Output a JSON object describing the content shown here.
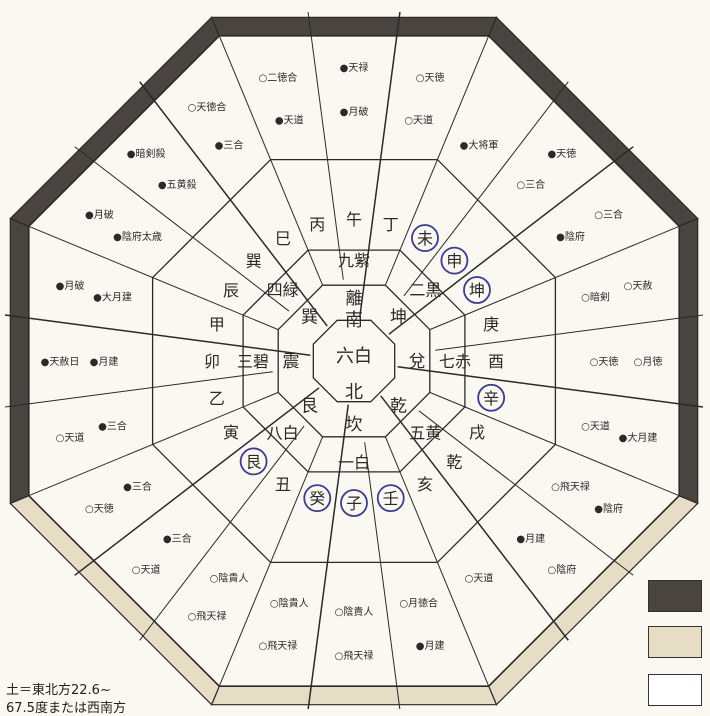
{
  "center": {
    "top": "北",
    "middle": "六白",
    "bottom": "南"
  },
  "colors": {
    "ink": "#2a2a2a",
    "dark_band": "#4a4440",
    "light_band": "#e7dcc4",
    "paper": "#fbf8f1",
    "circle": "#3b3b9a"
  },
  "sectors": [
    {
      "kyusei": "一白",
      "trigram": "坎",
      "branches": [
        "壬",
        "子",
        "癸"
      ]
    },
    {
      "kyusei": "二黒",
      "trigram": "坤",
      "branches": [
        "未",
        "申",
        "坤"
      ]
    },
    {
      "kyusei": "三碧",
      "trigram": "震",
      "branches": [
        "乙",
        "卯",
        "甲"
      ]
    },
    {
      "kyusei": "四緑",
      "trigram": "巽",
      "branches": [
        "辰",
        "巽",
        "巳"
      ]
    },
    {
      "kyusei": "九紫",
      "trigram": "離",
      "branches": [
        "丙",
        "午",
        "丁"
      ]
    },
    {
      "kyusei": "八白",
      "trigram": "艮",
      "branches": [
        "丑",
        "艮",
        "寅"
      ]
    },
    {
      "kyusei": "七赤",
      "trigram": "兌",
      "branches": [
        "庚",
        "酉",
        "辛"
      ]
    },
    {
      "kyusei": "五黄",
      "trigram": "乾",
      "branches": [
        "戌",
        "乾",
        "亥"
      ]
    }
  ],
  "cell_texts": [
    [
      "○陰貴人",
      "○飛天禄"
    ],
    [
      "○陰貴人",
      "○飛天禄"
    ],
    [
      "○陰貴人",
      "○飛天禄"
    ],
    [
      "●三合",
      "○天道"
    ],
    [
      "●三合",
      "○天徳"
    ],
    [
      "●三合",
      "○天道"
    ],
    [
      "●月建",
      "●天赦日"
    ],
    [
      "●大月建",
      "●月破"
    ],
    [
      "●陰府太歳",
      "●月破"
    ],
    [
      "●五黄殺",
      "●暗剣殺"
    ],
    [
      "●三合",
      "○天徳合"
    ],
    [
      "●天道",
      "○二徳合"
    ],
    [
      "●月破",
      "●天禄"
    ],
    [
      "○天道",
      "○天徳"
    ],
    [
      "●大将軍"
    ],
    [
      "○三合",
      "●天徳"
    ],
    [
      "●陰府",
      "○三合"
    ],
    [
      "○暗剣",
      "○天赦"
    ],
    [
      "○天徳",
      "○月徳"
    ],
    [
      "○天道",
      "●大月建"
    ],
    [
      "○飛天禄",
      "●陰府"
    ],
    [
      "●月建",
      "○陰府"
    ],
    [
      "○天道"
    ],
    [
      "○月徳合",
      "●月建"
    ]
  ],
  "notes": {
    "line1": "土＝東北方22.6~",
    "line2": "67.5度または西南方"
  }
}
